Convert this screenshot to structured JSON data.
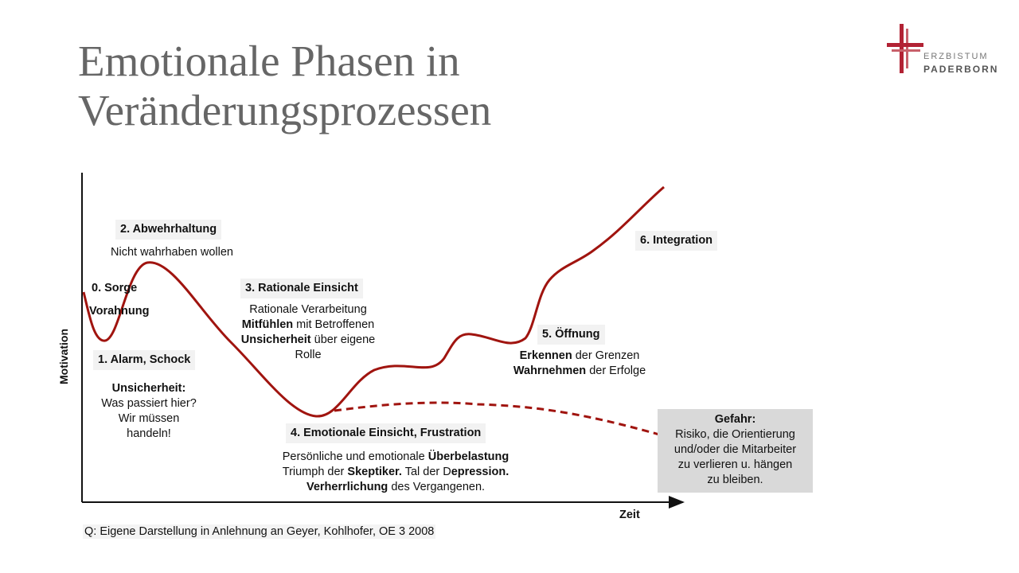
{
  "title": {
    "line1": "Emotionale Phasen in",
    "line2": "Veränderungsprozessen"
  },
  "logo": {
    "line1": "ERZBISTUM",
    "line2": "PADERBORN",
    "icon": "cross-icon",
    "color": "#b22234"
  },
  "axes": {
    "y_label": "Motivation",
    "x_label": "Zeit"
  },
  "phases": {
    "p0": {
      "title": "0. Sorge",
      "subtitle": "Vorahnung"
    },
    "p1": {
      "title": "1. Alarm,  Schock",
      "bold": "Unsicherheit:",
      "l1": "Was passiert hier?",
      "l2": "Wir müssen",
      "l3": "handeln!"
    },
    "p2": {
      "title": "2. Abwehrhaltung",
      "desc": "Nicht wahrhaben wollen"
    },
    "p3": {
      "title": "3. Rationale Einsicht",
      "l1": "Rationale Verarbeitung",
      "l2b": "Mitfühlen",
      "l2": " mit Betroffenen",
      "l3b": "Unsicherheit",
      "l3": " über eigene",
      "l4": "Rolle"
    },
    "p4": {
      "title": "4. Emotionale Einsicht, Frustration",
      "l1": "Persönliche und emotionale ",
      "l1b": "Überbelastung",
      "l2": "Triumph der ",
      "l2b": "Skeptiker.",
      "l2c": " Tal der D",
      "l2d": "epression.",
      "l3b": "Verherrlichung",
      "l3": " des Vergangenen."
    },
    "p5": {
      "title": "5. Öffnung",
      "l1b": "Erkennen",
      "l1": " der Grenzen",
      "l2b": "Wahrnehmen",
      "l2": " der Erfolge"
    },
    "p6": {
      "title": "6. Integration"
    }
  },
  "danger": {
    "title": "Gefahr:",
    "l1": "Risiko, die Orientierung",
    "l2": "und/oder die Mitarbeiter",
    "l3": "zu verlieren u. hängen",
    "l4": "zu bleiben."
  },
  "source": "Q: Eigene Darstellung in Anlehnung  an Geyer,  Kohlhofer,  OE 3 2008",
  "colors": {
    "curve": "#a0140f",
    "axis": "#111111",
    "title": "#666666",
    "danger_box": "#d9d9d9"
  }
}
